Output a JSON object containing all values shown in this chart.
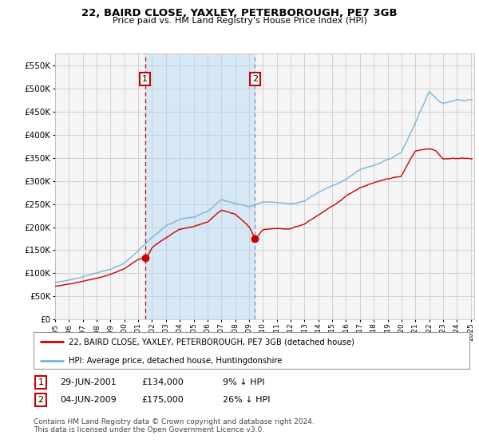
{
  "title": "22, BAIRD CLOSE, YAXLEY, PETERBOROUGH, PE7 3GB",
  "subtitle": "Price paid vs. HM Land Registry's House Price Index (HPI)",
  "ylabel_ticks": [
    0,
    50000,
    100000,
    150000,
    200000,
    250000,
    300000,
    350000,
    400000,
    450000,
    500000,
    550000
  ],
  "ylim": [
    0,
    575000
  ],
  "xlim_start": 1995.0,
  "xlim_end": 2025.25,
  "hpi_color": "#7ab3d8",
  "price_color": "#cc0000",
  "background_color": "#ffffff",
  "plot_bg": "#f5f5f5",
  "grid_color": "#cccccc",
  "shade_color": "#d6e8f5",
  "sale1_x": 2001.49,
  "sale1_y": 134000,
  "sale2_x": 2009.42,
  "sale2_y": 175000,
  "legend_label_price": "22, BAIRD CLOSE, YAXLEY, PETERBOROUGH, PE7 3GB (detached house)",
  "legend_label_hpi": "HPI: Average price, detached house, Huntingdonshire",
  "annotation1_label": "1",
  "annotation1_date": "29-JUN-2001",
  "annotation1_price": "£134,000",
  "annotation1_hpi": "9% ↓ HPI",
  "annotation2_label": "2",
  "annotation2_date": "04-JUN-2009",
  "annotation2_price": "£175,000",
  "annotation2_hpi": "26% ↓ HPI",
  "footer": "Contains HM Land Registry data © Crown copyright and database right 2024.\nThis data is licensed under the Open Government Licence v3.0."
}
